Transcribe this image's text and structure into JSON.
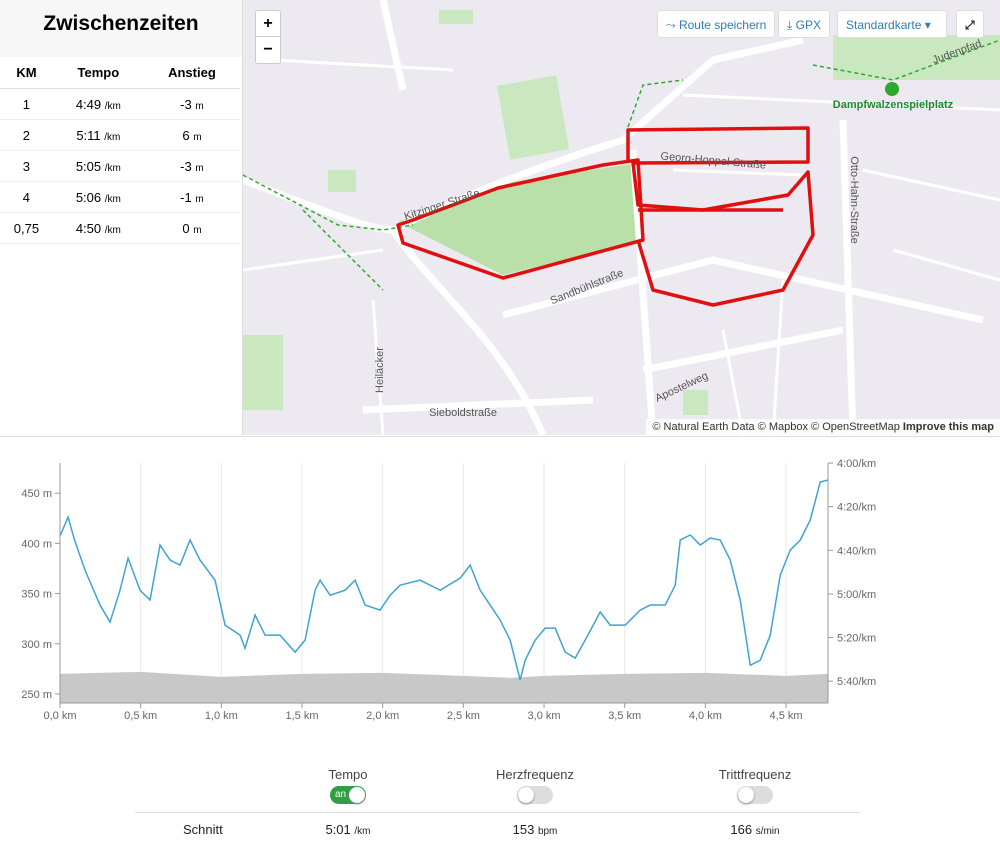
{
  "splits": {
    "title": "Zwischenzeiten",
    "headers": [
      "KM",
      "Tempo",
      "Anstieg"
    ],
    "rows": [
      [
        "1",
        "4:49",
        "/km",
        "-3",
        "m"
      ],
      [
        "2",
        "5:11",
        "/km",
        "6",
        "m"
      ],
      [
        "3",
        "5:05",
        "/km",
        "-3",
        "m"
      ],
      [
        "4",
        "5:06",
        "/km",
        "-1",
        "m"
      ],
      [
        "0,75",
        "4:50",
        "/km",
        "0",
        "m"
      ]
    ]
  },
  "map": {
    "zoom_in": "+",
    "zoom_out": "−",
    "save_route": "Route speichern",
    "gpx": "GPX",
    "style": "Standardkarte",
    "attribution": "© Natural Earth Data © Mapbox © OpenStreetMap",
    "improve": "Improve this map",
    "labels": [
      "Kitzinger Straße",
      "Sandbühlstraße",
      "Otto-Hahn-Straße",
      "Sieboldstraße",
      "Heiläcker",
      "Apostelweg",
      "Dampfwalzenspielplatz",
      "Judenpfad",
      "Georg-Hoppel-Straße"
    ]
  },
  "chart_data": {
    "type": "line",
    "xlim": [
      0,
      4.76
    ],
    "ylim": [
      241,
      480
    ],
    "y2lim": [
      350,
      240
    ],
    "grid": "x",
    "xticks": [
      {
        "value": 0,
        "label": "0,0 km"
      },
      {
        "value": 0.5,
        "label": "0,5 km"
      },
      {
        "value": 1,
        "label": "1,0 km"
      },
      {
        "value": 1.5,
        "label": "1,5 km"
      },
      {
        "value": 2,
        "label": "2,0 km"
      },
      {
        "value": 2.5,
        "label": "2,5 km"
      },
      {
        "value": 3,
        "label": "3,0 km"
      },
      {
        "value": 3.5,
        "label": "3,5 km"
      },
      {
        "value": 4,
        "label": "4,0 km"
      },
      {
        "value": 4.5,
        "label": "4,5 km"
      }
    ],
    "yticks": [
      {
        "value": 250,
        "label": "250 m"
      },
      {
        "value": 300,
        "label": "300 m"
      },
      {
        "value": 350,
        "label": "350 m"
      },
      {
        "value": 400,
        "label": "400 m"
      },
      {
        "value": 450,
        "label": "450 m"
      }
    ],
    "y2ticks": [
      {
        "value": 240,
        "label": "4:00/km"
      },
      {
        "value": 260,
        "label": "4:20/km"
      },
      {
        "value": 280,
        "label": "4:40/km"
      },
      {
        "value": 300,
        "label": "5:00/km"
      },
      {
        "value": 320,
        "label": "5:20/km"
      },
      {
        "value": 340,
        "label": "5:40/km"
      }
    ],
    "series": [
      {
        "color": "#c8c8c8",
        "kind": "area",
        "x": [
          0,
          0.5,
          1,
          1.5,
          2,
          2.5,
          2.8,
          3,
          3.5,
          4,
          4.5,
          4.76
        ],
        "values": [
          270,
          272,
          267,
          270,
          271,
          268,
          266,
          268,
          270,
          271,
          268,
          270
        ]
      },
      {
        "color": "#3fa3d2",
        "kind": "line",
        "axis": "y2",
        "x": [
          0,
          0.05,
          0.09,
          0.155,
          0.248,
          0.31,
          0.372,
          0.422,
          0.496,
          0.558,
          0.62,
          0.682,
          0.744,
          0.806,
          0.868,
          0.961,
          1.023,
          1.116,
          1.147,
          1.209,
          1.271,
          1.364,
          1.457,
          1.519,
          1.581,
          1.612,
          1.674,
          1.767,
          1.829,
          1.891,
          1.984,
          2.046,
          2.108,
          2.232,
          2.356,
          2.48,
          2.542,
          2.604,
          2.666,
          2.728,
          2.79,
          2.852,
          2.883,
          2.945,
          3.007,
          3.069,
          3.131,
          3.193,
          3.255,
          3.348,
          3.41,
          3.503,
          3.596,
          3.658,
          3.751,
          3.813,
          3.844,
          3.906,
          3.968,
          4.03,
          4.092,
          4.154,
          4.216,
          4.278,
          4.34,
          4.402,
          4.464,
          4.526,
          4.588,
          4.65,
          4.712,
          4.761
        ],
        "values": [
          273.5,
          264.8,
          275.3,
          289.1,
          305.1,
          312.9,
          298.3,
          283.6,
          298.3,
          302.8,
          277.6,
          284.5,
          286.8,
          275.3,
          284.5,
          293.7,
          314.3,
          318.9,
          324.9,
          309.7,
          318.9,
          318.9,
          326.7,
          321.2,
          298.3,
          293.7,
          300.6,
          298.3,
          293.7,
          305.1,
          307.4,
          300.6,
          296,
          293.7,
          298.3,
          292.8,
          286.8,
          298.3,
          305.1,
          312,
          321.2,
          339.5,
          330.4,
          321.2,
          315.7,
          315.7,
          326.7,
          329.4,
          321.2,
          308.3,
          314.3,
          314.3,
          307.4,
          305.1,
          305.1,
          296,
          275.3,
          273,
          277.6,
          274.4,
          275.3,
          284.5,
          302.8,
          332.7,
          330.4,
          318.9,
          291.4,
          279.9,
          275.3,
          266.1,
          248.7,
          247.8
        ]
      }
    ]
  },
  "toggles": [
    {
      "label": "Tempo",
      "state": "an"
    },
    {
      "label": "Herzfrequenz"
    },
    {
      "label": "Trittfrequenz"
    }
  ],
  "summary": {
    "label": "Schnitt",
    "cells": [
      {
        "value": "5:01",
        "unit": "/km"
      },
      {
        "value": 153,
        "unit": "bpm"
      },
      {
        "value": 166,
        "unit": "s/min"
      }
    ]
  }
}
